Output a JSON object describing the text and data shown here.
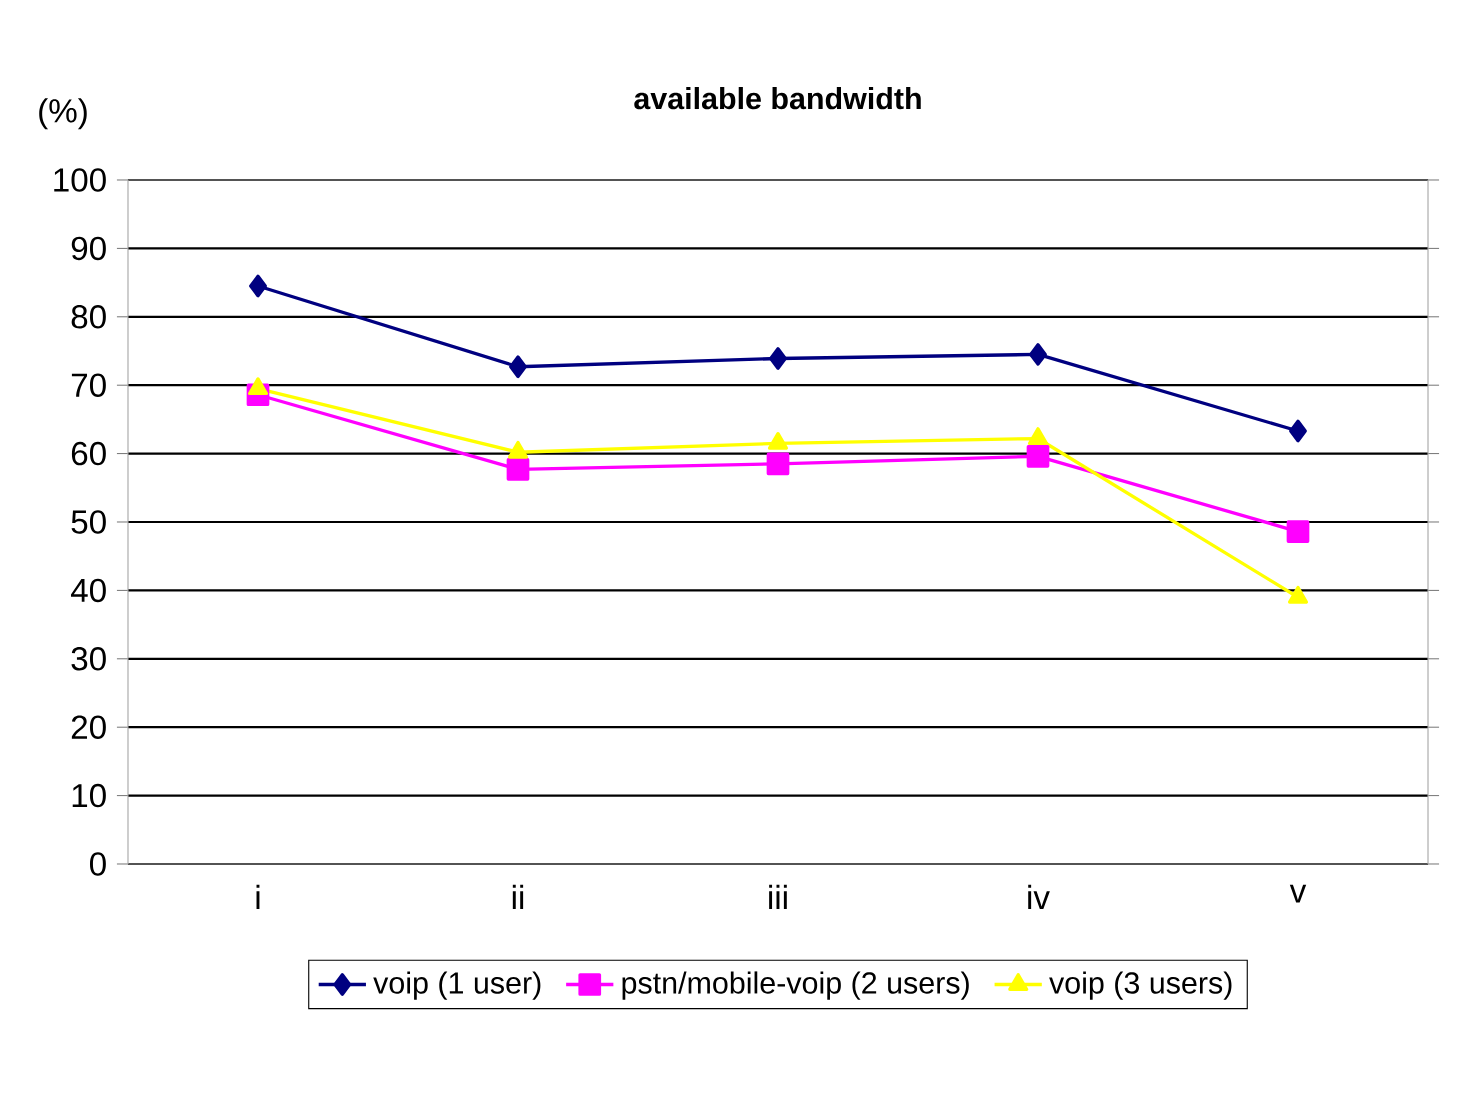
{
  "chart_data": {
    "type": "line",
    "title": "available bandwidth",
    "ylabel": "(%)",
    "categories": [
      "i",
      "ii",
      "iii",
      "iv",
      "v"
    ],
    "series": [
      {
        "name": "voip (1 user)",
        "color": "#000080",
        "marker": "diamond",
        "values": [
          84.5,
          72.7,
          73.9,
          74.5,
          63.3
        ]
      },
      {
        "name": "pstn/mobile-voip (2 users)",
        "color": "#ff00ff",
        "marker": "square",
        "values": [
          68.6,
          57.7,
          58.5,
          59.6,
          48.6
        ]
      },
      {
        "name": "voip (3 users)",
        "color": "#ffff00",
        "marker": "triangle",
        "values": [
          69.5,
          60.2,
          61.5,
          62.2,
          39.0
        ]
      }
    ],
    "ylim": [
      0,
      100
    ],
    "yticks": [
      0,
      10,
      20,
      30,
      40,
      50,
      60,
      70,
      80,
      90,
      100
    ],
    "grid": "y",
    "legend": "bottom"
  }
}
